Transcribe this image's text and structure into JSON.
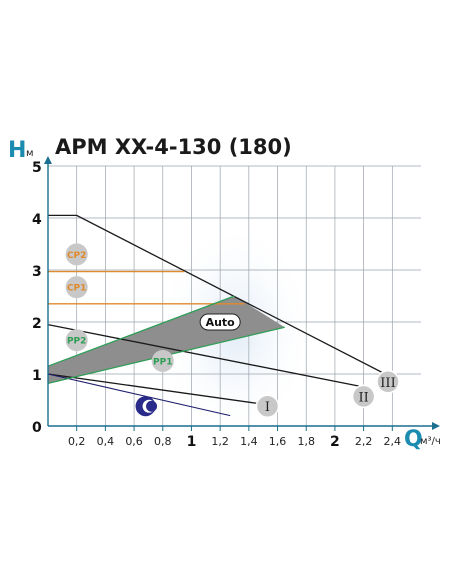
{
  "chart_data": {
    "type": "line",
    "title": "APM XX-4-130 (180)",
    "y_axis": {
      "symbol": "H",
      "unit": "м",
      "range": [
        0,
        5
      ],
      "ticks": [
        "0",
        "1",
        "2",
        "3",
        "4",
        "5"
      ]
    },
    "x_axis": {
      "symbol": "Q",
      "unit": "м³/ч",
      "range": [
        0,
        2.6
      ],
      "ticks": [
        {
          "value": 0.2,
          "label": "0,2",
          "bold": false
        },
        {
          "value": 0.4,
          "label": "0,4",
          "bold": false
        },
        {
          "value": 0.6,
          "label": "0,6",
          "bold": false
        },
        {
          "value": 0.8,
          "label": "0,8",
          "bold": false
        },
        {
          "value": 1.0,
          "label": "1",
          "bold": true
        },
        {
          "value": 1.2,
          "label": "1,2",
          "bold": false
        },
        {
          "value": 1.4,
          "label": "1,4",
          "bold": false
        },
        {
          "value": 1.6,
          "label": "1,6",
          "bold": false
        },
        {
          "value": 1.8,
          "label": "1,8",
          "bold": false
        },
        {
          "value": 2.0,
          "label": "2",
          "bold": true
        },
        {
          "value": 2.2,
          "label": "2,2",
          "bold": false
        },
        {
          "value": 2.4,
          "label": "2,4",
          "bold": false
        }
      ]
    },
    "grid": true,
    "series": [
      {
        "name": "III",
        "color": "#1a1a1a",
        "x": [
          0,
          0.2,
          2.35
        ],
        "y": [
          4.05,
          4.05,
          1.0
        ]
      },
      {
        "name": "II",
        "color": "#1a1a1a",
        "x": [
          0,
          2.2
        ],
        "y": [
          1.95,
          0.75
        ]
      },
      {
        "name": "I",
        "color": "#1a1a1a",
        "x": [
          0,
          1.55
        ],
        "y": [
          1.0,
          0.4
        ]
      },
      {
        "name": "night",
        "color": "#1f1f6e",
        "x": [
          0,
          1.27
        ],
        "y": [
          1.0,
          0.2
        ]
      },
      {
        "name": "CP2",
        "color": "#e08a2c",
        "x": [
          0,
          0.95
        ],
        "y": [
          2.97,
          2.97
        ]
      },
      {
        "name": "CP1",
        "color": "#e08a2c",
        "x": [
          0,
          1.37
        ],
        "y": [
          2.35,
          2.35
        ]
      },
      {
        "name": "PP2",
        "color": "#2e9e55",
        "x": [
          0,
          1.3
        ],
        "y": [
          1.15,
          2.5
        ]
      },
      {
        "name": "PP1",
        "color": "#2e9e55",
        "x": [
          0,
          1.65
        ],
        "y": [
          0.82,
          1.9
        ]
      }
    ],
    "auto_region": {
      "x": [
        0,
        1.3,
        1.65,
        0
      ],
      "y": [
        1.15,
        2.5,
        1.9,
        0.82
      ],
      "color": "#8e8e8e"
    },
    "labels": [
      {
        "text": "CP2",
        "x": 0.2,
        "y": 3.3,
        "shape": "circle",
        "color": "#e08a2c"
      },
      {
        "text": "CP1",
        "x": 0.2,
        "y": 2.67,
        "shape": "circle",
        "color": "#e08a2c"
      },
      {
        "text": "PP2",
        "x": 0.2,
        "y": 1.65,
        "shape": "circle",
        "color": "#2e9e55"
      },
      {
        "text": "PP1",
        "x": 0.8,
        "y": 1.25,
        "shape": "circle",
        "color": "#2e9e55"
      },
      {
        "text": "Auto",
        "x": 1.2,
        "y": 2.0,
        "shape": "pill",
        "color": "#111111"
      },
      {
        "text": "III",
        "x": 2.37,
        "y": 0.85,
        "shape": "circle",
        "color": "#222222"
      },
      {
        "text": "II",
        "x": 2.2,
        "y": 0.57,
        "shape": "circle",
        "color": "#222222"
      },
      {
        "text": "I",
        "x": 1.53,
        "y": 0.38,
        "shape": "circle",
        "color": "#222222"
      }
    ],
    "night_icon": {
      "name": "moon-icon",
      "x": 0.68,
      "y": 0.38,
      "color": "#2a2a8a"
    }
  }
}
